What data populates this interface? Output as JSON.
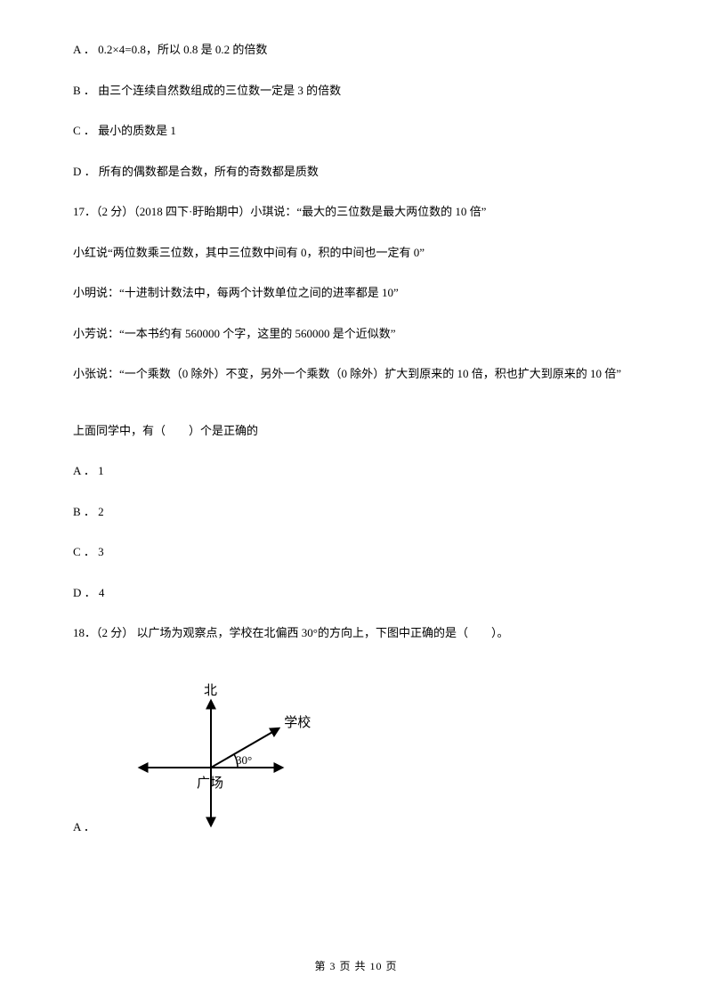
{
  "q_prev_options": {
    "a": "A ． 0.2×4=0.8，所以 0.8 是 0.2 的倍数",
    "b": "B ． 由三个连续自然数组成的三位数一定是 3 的倍数",
    "c": "C ． 最小的质数是 1",
    "d": "D ． 所有的偶数都是合数，所有的奇数都是质数"
  },
  "q17": {
    "stem": "17．（2 分）（2018 四下·盱眙期中）小琪说：“最大的三位数是最大两位数的 10 倍”",
    "s2": "小红说“两位数乘三位数，其中三位数中间有 0，积的中间也一定有 0”",
    "s3": "小明说：“十进制计数法中，每两个计数单位之间的进率都是 10”",
    "s4": "小芳说：“一本书约有 560000 个字，这里的 560000 是个近似数”",
    "s5": "小张说：“一个乘数（0 除外）不变，另外一个乘数（0 除外）扩大到原来的 10 倍，积也扩大到原来的 10 倍”",
    "prompt": "上面同学中，有（　　）个是正确的",
    "a": "A ． 1",
    "b": "B ． 2",
    "c": "C ． 3",
    "d": "D ． 4"
  },
  "q18": {
    "stem": "18．（2 分） 以广场为观察点，学校在北偏西 30°的方向上，下图中正确的是（　　）。",
    "a_label": "A ．",
    "diagram": {
      "north_label": "北",
      "school_label": "学校",
      "center_label": "广场",
      "angle_label": "30°",
      "stroke": "#000000",
      "stroke_width": 2,
      "font_size": 15
    }
  },
  "footer": {
    "text": "第 3 页 共 10 页"
  }
}
